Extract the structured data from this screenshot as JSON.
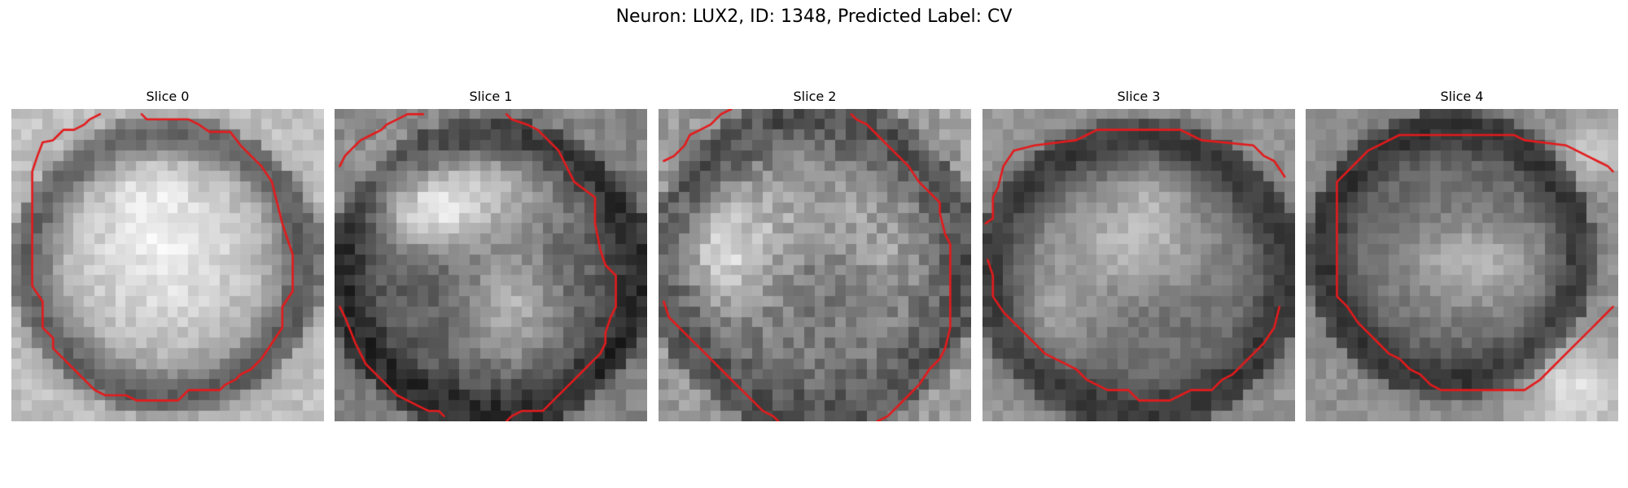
{
  "figure": {
    "title": "Neuron: LUX2, ID: 1348, Predicted Label: CV"
  },
  "colors": {
    "contour": "#e31a1c",
    "background": "#ffffff"
  },
  "panels": [
    {
      "title": "Slice 0"
    },
    {
      "title": "Slice 1"
    },
    {
      "title": "Slice 2"
    },
    {
      "title": "Slice 3"
    },
    {
      "title": "Slice 4"
    }
  ]
}
